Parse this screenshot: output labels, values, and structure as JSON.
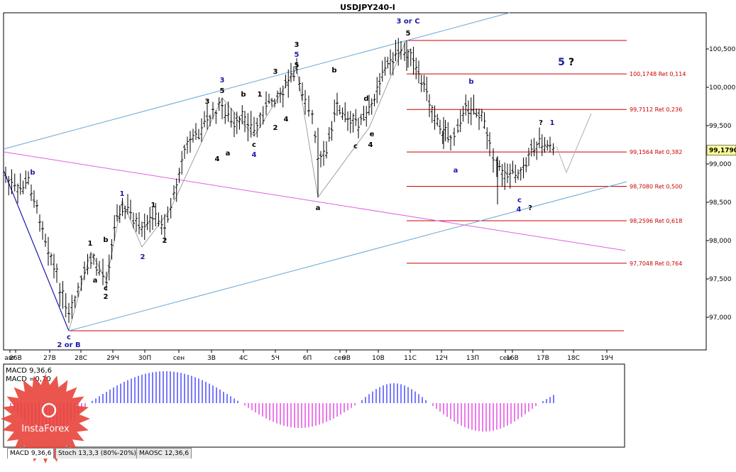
{
  "title": "USDJPY240-I",
  "price_axis": {
    "ticks": [
      "100,500",
      "100,000",
      "99,500",
      "99,000",
      "98,500",
      "98,000",
      "97,500",
      "97,000"
    ],
    "current_price": "99,1790"
  },
  "time_axis": {
    "labels": [
      "авг",
      "26B",
      "27B",
      "28C",
      "29Ч",
      "30П",
      "сен",
      "3B",
      "4C",
      "5Ч",
      "6П",
      "сен",
      "9B",
      "10B",
      "11C",
      "12Ч",
      "13П",
      "сен",
      "16B",
      "17B",
      "18C",
      "19Ч"
    ]
  },
  "fib_levels": [
    {
      "label": "100,1748 Ret 0,114",
      "value": 100.1748
    },
    {
      "label": "99,7112 Ret 0,236",
      "value": 99.7112
    },
    {
      "label": "99,1564 Ret 0,382",
      "value": 99.1564
    },
    {
      "label": "98,7080 Ret 0,500",
      "value": 98.708
    },
    {
      "label": "98,2596 Ret 0,618",
      "value": 98.2596
    },
    {
      "label": "97,7048 Ret 0,764",
      "value": 97.7048
    }
  ],
  "wave_labels": {
    "b_start": "b",
    "c_low": "c",
    "two_or_b": "2 or B",
    "one_a": "1",
    "c1": "c",
    "two_a": "2",
    "b1": "b",
    "a1": "a",
    "one_b": "1",
    "two_b": "2",
    "one_c": "1",
    "three_a": "3",
    "five_a": "5",
    "three_b": "3",
    "a2": "a",
    "b2": "b",
    "one_d": "1",
    "c2": "c",
    "four_a": "4",
    "two_c": "2",
    "four_b": "4",
    "three_c": "3",
    "five_b": "5",
    "five_c": "5",
    "three_d": "3",
    "b3": "b",
    "a3": "a",
    "c3": "c",
    "d3": "d",
    "e3": "e",
    "four_c": "4",
    "three_or_c": "3 or C",
    "five_d": "5",
    "b4": "b",
    "a4": "a",
    "q1": "?",
    "one_e": "1",
    "c4": "c",
    "four_d": "4",
    "q2": "?",
    "five_e": "5",
    "q3": "?"
  },
  "indicator": {
    "macd_label": "MACD 9,36,6",
    "macd_value": "MACD =0,10"
  },
  "tabs": [
    "MACD 9,36,6",
    "Stoch 13,3,3 (80%-20%)",
    "MAOSC 12,36,6"
  ],
  "watermark": "InstaForex",
  "colors": {
    "fib": "#cc0000",
    "channel": "#6aa7d4",
    "pink_line": "#e060e0",
    "wave_blue": "#1a1aaa",
    "macd_pos": "#2020ff",
    "macd_neg": "#e020e0",
    "candle": "#000000"
  },
  "chart_data": {
    "type": "line",
    "symbol": "USDJPY240-I",
    "ylim": [
      96.6,
      100.95
    ],
    "fib_levels": [
      100.1748,
      99.7112,
      99.1564,
      98.708,
      98.2596,
      97.7048
    ],
    "price_path": [
      {
        "x": "26B",
        "y": 98.85
      },
      {
        "x": "27B",
        "y": 98.2
      },
      {
        "x": "28C",
        "y": 96.85
      },
      {
        "x": "28C",
        "y": 97.85
      },
      {
        "x": "29Ч",
        "y": 97.45
      },
      {
        "x": "29Ч",
        "y": 98.5
      },
      {
        "x": "30П",
        "y": 97.92
      },
      {
        "x": "сен",
        "y": 98.6
      },
      {
        "x": "3B",
        "y": 99.85
      },
      {
        "x": "4C",
        "y": 99.35
      },
      {
        "x": "5Ч",
        "y": 100.25
      },
      {
        "x": "6П",
        "y": 99.6
      },
      {
        "x": "6П",
        "y": 98.55
      },
      {
        "x": "9B",
        "y": 99.7
      },
      {
        "x": "10B",
        "y": 99.5
      },
      {
        "x": "11C",
        "y": 100.62
      },
      {
        "x": "12Ч",
        "y": 99.4
      },
      {
        "x": "12Ч",
        "y": 99.05
      },
      {
        "x": "13П",
        "y": 99.95
      },
      {
        "x": "сен",
        "y": 99.25
      },
      {
        "x": "16B",
        "y": 98.6
      },
      {
        "x": "17B",
        "y": 99.35
      },
      {
        "x": "17B",
        "y": 99.17
      }
    ],
    "current_price": 99.179,
    "macd": {
      "params": "9,36,6",
      "value": 0.1
    }
  }
}
